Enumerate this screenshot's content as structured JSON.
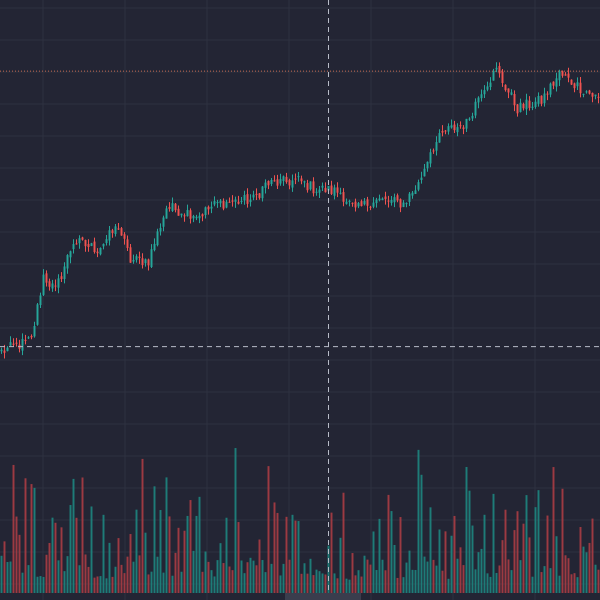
{
  "chart_data": {
    "type": "candlestick",
    "title": "",
    "xlabel": "",
    "ylabel": "",
    "price_axis_visible": false,
    "time_axis_visible": false,
    "grid": true,
    "legend": "none",
    "ylim": [
      0,
      100
    ],
    "crosshair": {
      "bar_index": 109,
      "price": 19.3
    },
    "max_price_line": 91.8,
    "colors": {
      "up": "#26a69a",
      "down": "#ef5350",
      "volume_up": "#1e7c78",
      "volume_down": "#9c3a42",
      "grid": "#2e3140",
      "crosshair": "#b8bcc8",
      "max_line": "#c46a50",
      "background": "#232534"
    },
    "keyframes": [
      [
        0,
        18
      ],
      [
        10,
        21
      ],
      [
        14,
        38
      ],
      [
        18,
        34
      ],
      [
        24,
        47
      ],
      [
        32,
        45
      ],
      [
        39,
        51
      ],
      [
        43,
        42
      ],
      [
        49,
        42
      ],
      [
        55,
        56
      ],
      [
        66,
        54
      ],
      [
        72,
        57
      ],
      [
        84,
        58
      ],
      [
        88,
        62
      ],
      [
        99,
        63
      ],
      [
        104,
        61
      ],
      [
        113,
        60
      ],
      [
        118,
        55
      ],
      [
        124,
        58
      ],
      [
        134,
        57
      ],
      [
        139,
        62
      ],
      [
        143,
        71
      ],
      [
        148,
        76
      ],
      [
        155,
        78
      ],
      [
        160,
        87
      ],
      [
        165,
        92
      ],
      [
        172,
        82
      ],
      [
        180,
        84
      ],
      [
        186,
        91
      ],
      [
        192,
        88
      ],
      [
        200,
        84
      ]
    ],
    "bars": 200
  }
}
